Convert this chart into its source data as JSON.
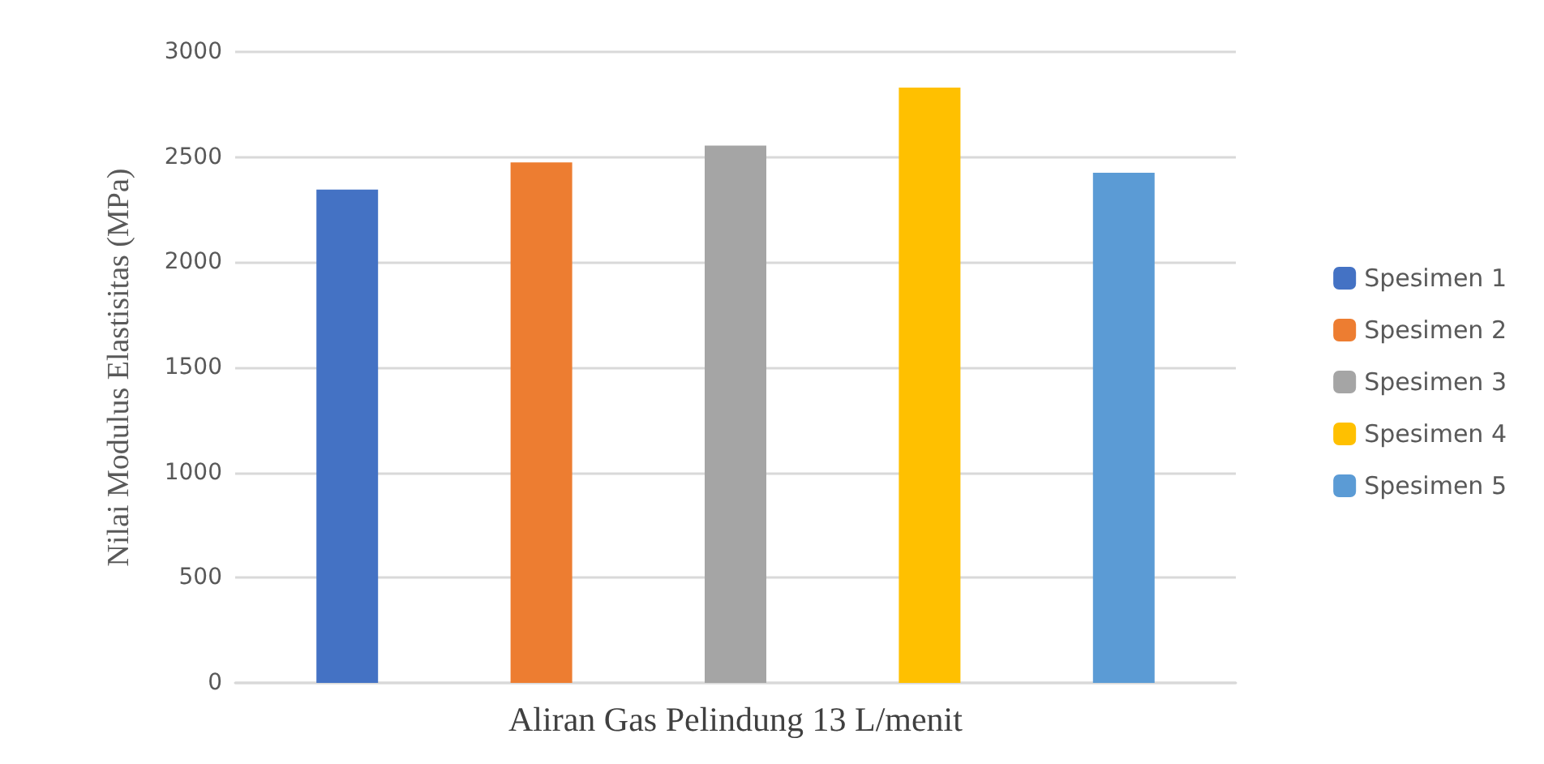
{
  "chart_data": {
    "type": "bar",
    "ylabel": "Nilai Modulus Elastisitas (MPa)",
    "categories": [
      "Aliran Gas Pelindung 13 L/menit"
    ],
    "series": [
      {
        "name": "Spesimen 1",
        "color": "#4472c4",
        "values": [
          2345
        ]
      },
      {
        "name": "Spesimen 2",
        "color": "#ed7d31",
        "values": [
          2475
        ]
      },
      {
        "name": "Spesimen 3",
        "color": "#a5a5a5",
        "values": [
          2555
        ]
      },
      {
        "name": "Spesimen 4",
        "color": "#ffc000",
        "values": [
          2830
        ]
      },
      {
        "name": "Spesimen 5",
        "color": "#5b9bd5",
        "values": [
          2425
        ]
      }
    ],
    "ylim": [
      0,
      3000
    ],
    "yticks": [
      0,
      500,
      1000,
      1500,
      2000,
      2500,
      3000
    ],
    "grid": "y",
    "legend": "right"
  }
}
